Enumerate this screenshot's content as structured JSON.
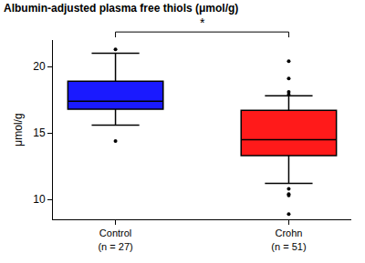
{
  "chart_data": {
    "type": "box",
    "title": "Albumin-adjusted plasma free thiols (μmol/g)",
    "y_label": "μmol/g",
    "categories": [
      "Control",
      "Crohn"
    ],
    "n_labels": [
      "(n = 27)",
      "(n = 51)"
    ],
    "boxes": [
      {
        "category": "Control",
        "color": "#1a1aff",
        "q1": 16.8,
        "median": 17.4,
        "q3": 18.9,
        "lower_whisker": 15.6,
        "upper_whisker": 21.0,
        "outliers": [
          21.3,
          14.4
        ]
      },
      {
        "category": "Crohn",
        "color": "#ff1a1a",
        "q1": 13.3,
        "median": 14.5,
        "q3": 16.7,
        "lower_whisker": 11.2,
        "upper_whisker": 17.8,
        "outliers": [
          20.4,
          19.1,
          18.1,
          17.9,
          10.8,
          10.4,
          10.3,
          8.9
        ]
      }
    ],
    "annotations": [
      {
        "text": "*",
        "between": [
          "Control",
          "Crohn"
        ]
      }
    ],
    "ylim": [
      8.5,
      22
    ],
    "yticks": [
      10,
      15,
      20
    ],
    "grid": false
  }
}
